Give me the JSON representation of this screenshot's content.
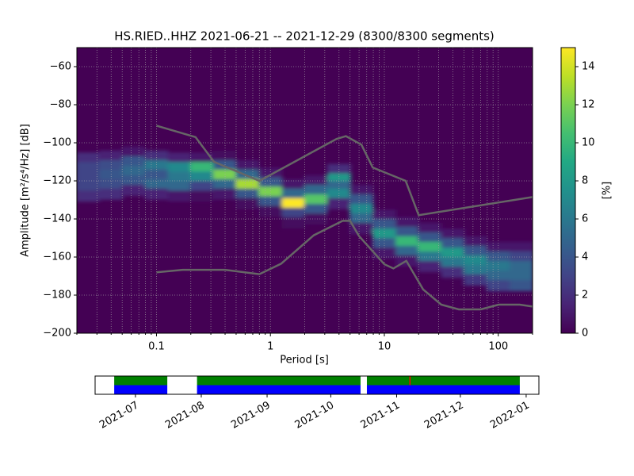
{
  "chart_data": [
    {
      "type": "heatmap",
      "title": "HS.RIED..HHZ   2021-06-21 -- 2021-12-29  (8300/8300 segments)",
      "xlabel": "Period [s]",
      "ylabel": "Amplitude [m²/s⁴/Hz] [dB]",
      "colorbar_label": "[%]",
      "colormap": "viridis",
      "xscale": "log",
      "grid": true,
      "xlim": [
        0.02,
        200
      ],
      "xticks": [
        0.1,
        1,
        10,
        100
      ],
      "xminorticks": [
        0.02,
        0.03,
        0.04,
        0.05,
        0.06,
        0.07,
        0.08,
        0.09,
        0.2,
        0.3,
        0.4,
        0.5,
        0.6,
        0.7,
        0.8,
        0.9,
        2,
        3,
        4,
        5,
        6,
        7,
        8,
        9,
        20,
        30,
        40,
        50,
        60,
        70,
        80,
        90,
        200
      ],
      "ylim": [
        -200,
        -50
      ],
      "yticks": [
        {
          "value": -200,
          "label": "−200"
        },
        {
          "value": -180,
          "label": "−180"
        },
        {
          "value": -160,
          "label": "−160"
        },
        {
          "value": -140,
          "label": "−140"
        },
        {
          "value": -120,
          "label": "−120"
        },
        {
          "value": -100,
          "label": "−100"
        },
        {
          "value": -80,
          "label": "−80"
        },
        {
          "value": -60,
          "label": "−60"
        }
      ],
      "zlim": [
        0,
        15
      ],
      "zticks": [
        0,
        2,
        4,
        6,
        8,
        10,
        12,
        14
      ],
      "cells": [
        [
          0.025,
          -108,
          2
        ],
        [
          0.025,
          -113,
          3
        ],
        [
          0.025,
          -118,
          3
        ],
        [
          0.025,
          -123,
          3
        ],
        [
          0.025,
          -128,
          2
        ],
        [
          0.04,
          -107,
          1.5
        ],
        [
          0.04,
          -112,
          3.5
        ],
        [
          0.04,
          -117,
          4
        ],
        [
          0.04,
          -122,
          3.5
        ],
        [
          0.04,
          -127,
          2
        ],
        [
          0.063,
          -105,
          1
        ],
        [
          0.063,
          -110,
          4
        ],
        [
          0.063,
          -115,
          5
        ],
        [
          0.063,
          -120,
          4
        ],
        [
          0.063,
          -125,
          1.5
        ],
        [
          0.1,
          -107,
          2
        ],
        [
          0.1,
          -112,
          6
        ],
        [
          0.1,
          -117,
          4
        ],
        [
          0.1,
          -122,
          5
        ],
        [
          0.1,
          -127,
          1.5
        ],
        [
          0.16,
          -108,
          1.5
        ],
        [
          0.16,
          -113,
          7
        ],
        [
          0.16,
          -118,
          6
        ],
        [
          0.16,
          -123,
          5
        ],
        [
          0.16,
          -128,
          1
        ],
        [
          0.25,
          -108,
          1
        ],
        [
          0.25,
          -113,
          10
        ],
        [
          0.25,
          -118,
          7
        ],
        [
          0.25,
          -123,
          3
        ],
        [
          0.25,
          -128,
          0.5
        ],
        [
          0.4,
          -107,
          0.5
        ],
        [
          0.4,
          -112,
          4
        ],
        [
          0.4,
          -117,
          12
        ],
        [
          0.4,
          -122,
          5
        ],
        [
          0.4,
          -127,
          1
        ],
        [
          0.63,
          -112,
          1
        ],
        [
          0.63,
          -117,
          5
        ],
        [
          0.63,
          -122,
          13
        ],
        [
          0.63,
          -127,
          4
        ],
        [
          0.63,
          -132,
          0.5
        ],
        [
          1,
          -116,
          1
        ],
        [
          1,
          -121,
          4
        ],
        [
          1,
          -126,
          12
        ],
        [
          1,
          -131,
          4
        ],
        [
          1,
          -136,
          0.5
        ],
        [
          1.6,
          -122,
          1
        ],
        [
          1.6,
          -127,
          5
        ],
        [
          1.6,
          -132,
          15
        ],
        [
          1.6,
          -137,
          3
        ],
        [
          1.6,
          -142,
          0.5
        ],
        [
          2.5,
          -120,
          1
        ],
        [
          2.5,
          -125,
          5
        ],
        [
          2.5,
          -130,
          11
        ],
        [
          2.5,
          -135,
          4
        ],
        [
          2.5,
          -140,
          0.5
        ],
        [
          4,
          -114,
          2
        ],
        [
          4,
          -119,
          8
        ],
        [
          4,
          -123,
          5
        ],
        [
          4,
          -127,
          7
        ],
        [
          4,
          -132,
          1.5
        ],
        [
          6.3,
          -125,
          1
        ],
        [
          6.3,
          -130,
          4
        ],
        [
          6.3,
          -135,
          7
        ],
        [
          6.3,
          -140,
          5
        ],
        [
          6.3,
          -145,
          1
        ],
        [
          10,
          -138,
          1
        ],
        [
          10,
          -143,
          4
        ],
        [
          10,
          -148,
          8
        ],
        [
          10,
          -153,
          4
        ],
        [
          10,
          -158,
          1
        ],
        [
          16,
          -142,
          1
        ],
        [
          16,
          -147,
          4
        ],
        [
          16,
          -152,
          10
        ],
        [
          16,
          -157,
          5
        ],
        [
          16,
          -162,
          1
        ],
        [
          25,
          -145,
          1
        ],
        [
          25,
          -150,
          4
        ],
        [
          25,
          -155,
          10
        ],
        [
          25,
          -160,
          6
        ],
        [
          25,
          -165,
          1.5
        ],
        [
          40,
          -148,
          1
        ],
        [
          40,
          -153,
          4
        ],
        [
          40,
          -158,
          8
        ],
        [
          40,
          -163,
          6
        ],
        [
          40,
          -168,
          2
        ],
        [
          63,
          -152,
          1
        ],
        [
          63,
          -157,
          4
        ],
        [
          63,
          -162,
          7
        ],
        [
          63,
          -167,
          6
        ],
        [
          63,
          -172,
          2.5
        ],
        [
          100,
          -155,
          1
        ],
        [
          100,
          -160,
          4
        ],
        [
          100,
          -165,
          6
        ],
        [
          100,
          -170,
          5
        ],
        [
          100,
          -175,
          3
        ],
        [
          160,
          -155,
          1
        ],
        [
          160,
          -160,
          3
        ],
        [
          160,
          -165,
          5
        ],
        [
          160,
          -170,
          5
        ],
        [
          160,
          -175,
          4
        ]
      ],
      "lines": [
        {
          "color": "#666666",
          "x": [
            0.1,
            0.22,
            0.32,
            0.8,
            3.8,
            4.6,
            6.3,
            7.9,
            15.4,
            20,
            200
          ],
          "values": [
            -91,
            -97,
            -110,
            -120,
            -98,
            -96.5,
            -101,
            -113,
            -120,
            -138,
            -128.5
          ]
        },
        {
          "color": "#666666",
          "x": [
            0.1,
            0.17,
            0.4,
            0.8,
            1.24,
            2.4,
            4.3,
            5,
            6,
            10,
            12,
            15.6,
            21.9,
            31.6,
            45,
            70,
            101,
            154,
            200
          ],
          "values": [
            -168,
            -166.7,
            -166.7,
            -169,
            -163.5,
            -148.6,
            -141,
            -141,
            -149,
            -163.8,
            -166,
            -162,
            -177,
            -185,
            -187.5,
            -187.5,
            -185,
            -185,
            -186
          ]
        }
      ]
    },
    {
      "type": "timeline",
      "xlim": [
        "2021-06-12",
        "2022-01-07"
      ],
      "xticks": [
        {
          "value": "2021-07-01",
          "label": "2021-07"
        },
        {
          "value": "2021-08-01",
          "label": "2021-08"
        },
        {
          "value": "2021-09-01",
          "label": "2021-09"
        },
        {
          "value": "2021-10-01",
          "label": "2021-10"
        },
        {
          "value": "2021-11-01",
          "label": "2021-11"
        },
        {
          "value": "2021-12-01",
          "label": "2021-12"
        },
        {
          "value": "2022-01-01",
          "label": "2022-01"
        }
      ],
      "series": [
        {
          "color": "#008000",
          "spans": [
            [
              "2021-06-21",
              "2021-07-16"
            ],
            [
              "2021-07-30",
              "2021-10-15"
            ],
            [
              "2021-10-18",
              "2021-12-29"
            ]
          ]
        },
        {
          "color": "#0000ff",
          "spans": [
            [
              "2021-06-21",
              "2021-07-16"
            ],
            [
              "2021-07-30",
              "2021-10-15"
            ],
            [
              "2021-10-18",
              "2021-12-29"
            ]
          ]
        },
        {
          "color": "#ff0000",
          "spans": [
            [
              "2021-11-07",
              "2021-11-07"
            ]
          ]
        }
      ]
    }
  ]
}
